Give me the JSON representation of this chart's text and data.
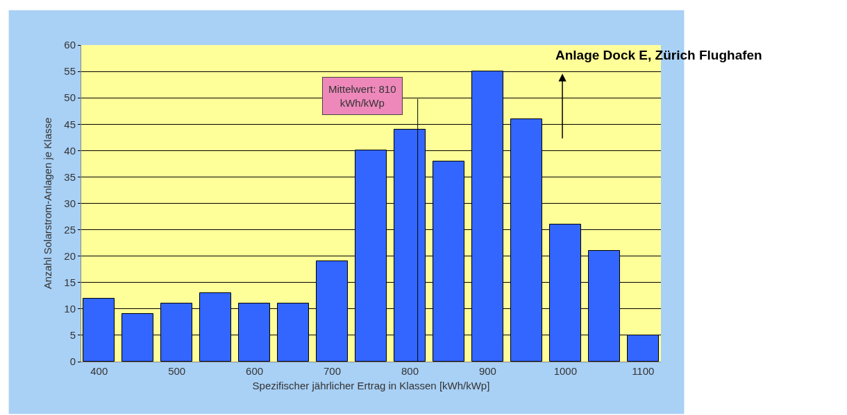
{
  "chart_data": {
    "type": "bar",
    "x": [
      400,
      450,
      500,
      550,
      600,
      650,
      700,
      750,
      800,
      850,
      900,
      950,
      1000,
      1050,
      1100
    ],
    "values": [
      12,
      9,
      11,
      13,
      11,
      11,
      19,
      40,
      44,
      38,
      55,
      46,
      26,
      21,
      5
    ],
    "color": "#3366ff",
    "xlabel": "Spezifischer jährlicher Ertrag in Klassen [kWh/kWp]",
    "ylabel": "Anzahl Solarstrom-Anlagen je Klasse",
    "xlim": [
      377,
      1123
    ],
    "xticks": [
      400,
      500,
      600,
      700,
      800,
      900,
      1000,
      1100
    ],
    "ylim": [
      0,
      60
    ],
    "yticks": [
      0,
      5,
      10,
      15,
      20,
      25,
      30,
      35,
      40,
      45,
      50,
      55,
      60
    ],
    "grid": "y",
    "legend": false,
    "ref_lines": [
      {
        "axis": "x",
        "value": 810,
        "label": "Mittelwert: 810 kWh/kWp",
        "color": "#000000"
      }
    ],
    "annotations": [
      "Anlage Dock E, Zürich Flughafen"
    ]
  }
}
